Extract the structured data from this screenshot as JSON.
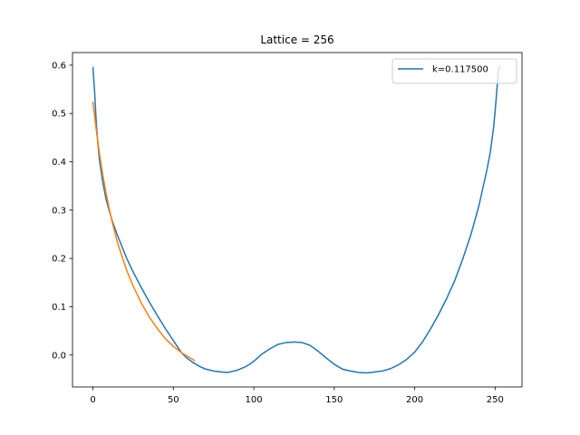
{
  "chart_data": {
    "type": "line",
    "title": "Lattice = 256",
    "xlabel": "",
    "ylabel": "",
    "xlim": [
      -12.7,
      266.7
    ],
    "ylim": [
      -0.066,
      0.626
    ],
    "grid": false,
    "legend_position": "top-right",
    "x_ticks": [
      0,
      50,
      100,
      150,
      200,
      250
    ],
    "y_ticks": [
      0.0,
      0.1,
      0.2,
      0.3,
      0.4,
      0.5,
      0.6
    ],
    "x_tick_labels": [
      "0",
      "50",
      "100",
      "150",
      "200",
      "250"
    ],
    "y_tick_labels": [
      "0.0",
      "0.1",
      "0.2",
      "0.3",
      "0.4",
      "0.5",
      "0.6"
    ],
    "series": [
      {
        "name": "k=0.117500",
        "color": "#1f77b4",
        "in_legend": true,
        "x": [
          0,
          1,
          2,
          3,
          4,
          6,
          8,
          10,
          12,
          15,
          18,
          21,
          25,
          30,
          35,
          40,
          45,
          50,
          53,
          55,
          58,
          62,
          66,
          70,
          75,
          80,
          83,
          85,
          90,
          95,
          100,
          105,
          110,
          115,
          120,
          125,
          130,
          135,
          140,
          145,
          150,
          155,
          160,
          165,
          170,
          173,
          175,
          180,
          185,
          190,
          195,
          200,
          205,
          210,
          215,
          220,
          225,
          230,
          235,
          240,
          243,
          245,
          247,
          249,
          250,
          251,
          252,
          253
        ],
        "y": [
          0.595,
          0.548,
          0.485,
          0.44,
          0.405,
          0.36,
          0.325,
          0.3,
          0.278,
          0.25,
          0.225,
          0.2,
          0.172,
          0.14,
          0.11,
          0.082,
          0.055,
          0.03,
          0.015,
          0.005,
          -0.005,
          -0.015,
          -0.023,
          -0.029,
          -0.033,
          -0.035,
          -0.036,
          -0.035,
          -0.031,
          -0.024,
          -0.013,
          0.002,
          0.013,
          0.022,
          0.026,
          0.027,
          0.026,
          0.02,
          0.008,
          -0.006,
          -0.019,
          -0.029,
          -0.033,
          -0.036,
          -0.037,
          -0.036,
          -0.035,
          -0.033,
          -0.028,
          -0.02,
          -0.009,
          0.006,
          0.028,
          0.055,
          0.085,
          0.118,
          0.155,
          0.2,
          0.25,
          0.31,
          0.355,
          0.385,
          0.42,
          0.47,
          0.505,
          0.545,
          0.59,
          0.598
        ]
      },
      {
        "name": "",
        "color": "#ff7f0e",
        "in_legend": false,
        "x": [
          0,
          2,
          4,
          6,
          8,
          10,
          12,
          15,
          18,
          21,
          25,
          30,
          35,
          40,
          45,
          50,
          55,
          60,
          63
        ],
        "y": [
          0.523,
          0.468,
          0.418,
          0.375,
          0.338,
          0.305,
          0.275,
          0.236,
          0.205,
          0.175,
          0.143,
          0.108,
          0.079,
          0.055,
          0.034,
          0.018,
          0.005,
          -0.005,
          -0.011
        ]
      }
    ]
  }
}
